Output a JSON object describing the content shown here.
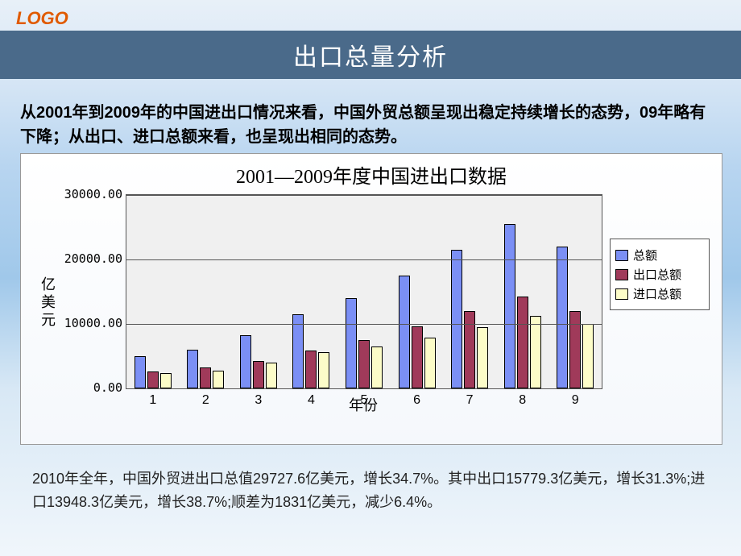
{
  "logo": "LOGO",
  "title_bar": "出口总量分析",
  "intro": "从2001年到2009年的中国进出口情况来看，中国外贸总额呈现出稳定持续增长的态势，09年略有下降；从出口、进口总额来看，也呈现出相同的态势。",
  "chart": {
    "type": "bar",
    "title": "2001—2009年度中国进出口数据",
    "ylabel": "亿美元",
    "xlabel": "年份",
    "categories": [
      "1",
      "2",
      "3",
      "4",
      "5",
      "6",
      "7",
      "8",
      "9"
    ],
    "series": [
      {
        "name": "总额",
        "color": "#7b8ff5",
        "values": [
          5000,
          6000,
          8300,
          11500,
          14000,
          17500,
          21500,
          25500,
          22000
        ]
      },
      {
        "name": "出口总额",
        "color": "#a03a5a",
        "values": [
          2600,
          3200,
          4300,
          5900,
          7500,
          9600,
          12000,
          14200,
          12000
        ]
      },
      {
        "name": "进口总额",
        "color": "#fcfcc8",
        "values": [
          2400,
          2800,
          4000,
          5600,
          6500,
          7900,
          9500,
          11300,
          10000
        ]
      }
    ],
    "ylim": [
      0,
      30000
    ],
    "ytick_step": 10000,
    "yticks": [
      "0.00",
      "10000.00",
      "20000.00",
      "30000.00"
    ],
    "grid_color": "#555555",
    "plot_bg": "#f0f0f0",
    "bar_border": "#000000",
    "title_fontsize": 24,
    "label_fontsize": 18,
    "tick_fontsize": 15
  },
  "legend_labels": [
    "总额",
    "出口总额",
    "进口总额"
  ],
  "footer": "2010年全年，中国外贸进出口总值29727.6亿美元，增长34.7%。其中出口15779.3亿美元，增长31.3%;进口13948.3亿美元，增长38.7%;顺差为1831亿美元，减少6.4%。"
}
